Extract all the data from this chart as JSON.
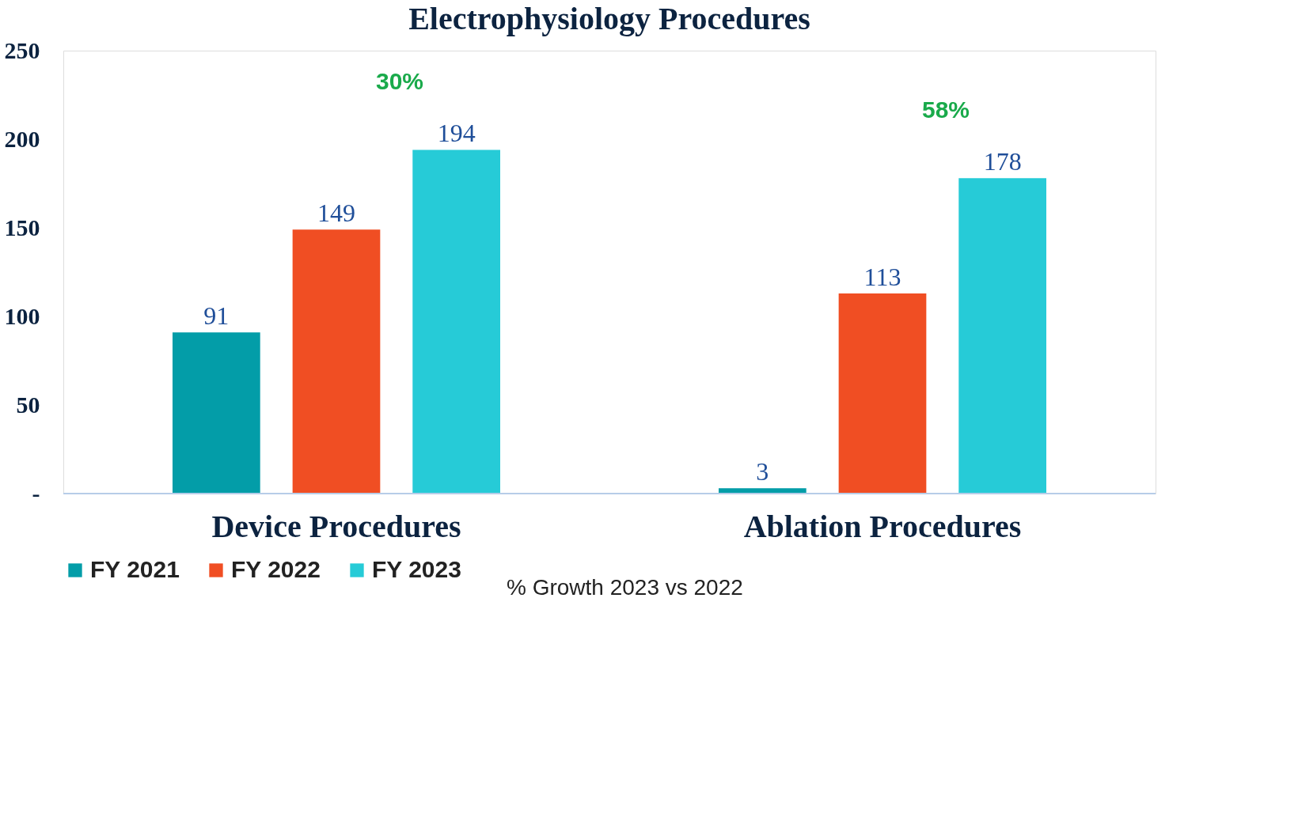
{
  "chart_data": {
    "type": "bar",
    "title": "Electrophysiology Procedures",
    "categories": [
      "Device Procedures",
      "Ablation Procedures"
    ],
    "series": [
      {
        "name": "FY 2021",
        "color": "#039da8",
        "values": [
          91,
          3
        ]
      },
      {
        "name": "FY 2022",
        "color": "#f04e23",
        "values": [
          149,
          113
        ]
      },
      {
        "name": "FY 2023",
        "color": "#26cbd7",
        "values": [
          194,
          178
        ]
      }
    ],
    "ylim": [
      0,
      250
    ],
    "yticks": [
      {
        "value": 0,
        "label": "-"
      },
      50,
      100,
      150,
      200,
      250
    ],
    "data_labels": true,
    "grid": false,
    "legend": "bottom",
    "annotations": [
      "30%",
      "58%",
      "% Growth 2023 vs 2022"
    ]
  }
}
